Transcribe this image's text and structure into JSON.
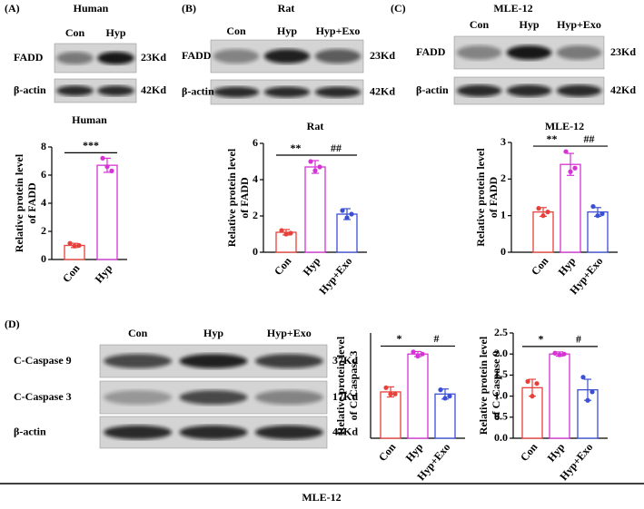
{
  "blots": [
    {
      "label": "(A)",
      "title": "Human",
      "lanes": [
        "Con",
        "Hyp"
      ],
      "rows": [
        {
          "protein": "FADD",
          "size": "23Kd"
        },
        {
          "protein": "β-actin",
          "size": "42Kd"
        }
      ]
    },
    {
      "label": "(B)",
      "title": "Rat",
      "lanes": [
        "Con",
        "Hyp",
        "Hyp+Exo"
      ],
      "rows": [
        {
          "protein": "FADD",
          "size": "23Kd"
        },
        {
          "protein": "β-actin",
          "size": "42Kd"
        }
      ]
    },
    {
      "label": "(C)",
      "title": "MLE-12",
      "lanes": [
        "Con",
        "Hyp",
        "Hyp+Exo"
      ],
      "rows": [
        {
          "protein": "FADD",
          "size": "23Kd"
        },
        {
          "protein": "β-actin",
          "size": "42Kd"
        }
      ]
    },
    {
      "label": "(D)",
      "lanes": [
        "Con",
        "Hyp",
        "Hyp+Exo"
      ],
      "rows": [
        {
          "protein": "C-Caspase 9",
          "size": "37Kd"
        },
        {
          "protein": "C-Caspase 3",
          "size": "17Kd"
        },
        {
          "protein": "β-actin",
          "size": "42Kd"
        }
      ]
    }
  ],
  "caption": "MLE-12",
  "chart_data": [
    {
      "type": "bar",
      "title": "Human",
      "ylabel": [
        "Relative protein level",
        "of FADD"
      ],
      "categories": [
        "Con",
        "Hyp"
      ],
      "values": [
        1.0,
        6.7
      ],
      "errors": [
        0.15,
        0.5
      ],
      "points": [
        [
          1.15,
          0.95,
          1.0
        ],
        [
          7.2,
          6.6,
          6.3
        ]
      ],
      "colors": [
        "#e8403a",
        "#d633d6"
      ],
      "significance": [
        "***"
      ],
      "ylim": [
        0,
        8
      ],
      "yticks": [
        0,
        2,
        4,
        6,
        8
      ]
    },
    {
      "type": "bar",
      "title": "Rat",
      "ylabel": [
        "Relative protein level",
        "of FADD"
      ],
      "categories": [
        "Con",
        "Hyp",
        "Hyp+Exo"
      ],
      "values": [
        1.1,
        4.7,
        2.1
      ],
      "errors": [
        0.15,
        0.35,
        0.3
      ],
      "points": [
        [
          1.2,
          1.0,
          1.05
        ],
        [
          5.0,
          4.5,
          4.7
        ],
        [
          2.3,
          1.9,
          2.1
        ]
      ],
      "colors": [
        "#e8403a",
        "#d633d6",
        "#3a4fd6"
      ],
      "significance": [
        "**",
        "##"
      ],
      "ylim": [
        0,
        6
      ],
      "yticks": [
        0,
        2,
        4,
        6
      ]
    },
    {
      "type": "bar",
      "title": "MLE-12",
      "ylabel": [
        "Relative protein level",
        "of FADD"
      ],
      "categories": [
        "Con",
        "Hyp",
        "Hyp+Exo"
      ],
      "values": [
        1.1,
        2.4,
        1.1
      ],
      "errors": [
        0.12,
        0.3,
        0.12
      ],
      "points": [
        [
          1.2,
          1.0,
          1.1
        ],
        [
          2.75,
          2.2,
          2.3
        ],
        [
          1.25,
          1.0,
          1.05
        ]
      ],
      "colors": [
        "#e8403a",
        "#d633d6",
        "#3a4fd6"
      ],
      "significance": [
        "**",
        "##"
      ],
      "ylim": [
        0,
        3
      ],
      "yticks": [
        0,
        1,
        2,
        3
      ]
    },
    {
      "type": "bar",
      "ylabel": [
        "Relative protein level",
        "of C-Caspase 3"
      ],
      "categories": [
        "Con",
        "Hyp",
        "Hyp+Exo"
      ],
      "values": [
        1.1,
        2.0,
        1.05
      ],
      "errors": [
        0.12,
        0.06,
        0.12
      ],
      "points": [
        [
          1.2,
          1.05,
          1.05
        ],
        [
          2.05,
          1.95,
          2.0
        ],
        [
          1.15,
          0.95,
          1.0
        ]
      ],
      "colors": [
        "#e8403a",
        "#d633d6",
        "#3a4fd6"
      ],
      "significance": [
        "*",
        "#"
      ],
      "ylim": [
        0,
        2.5
      ]
    },
    {
      "type": "bar",
      "ylabel": [
        "Relative protein level",
        "of C-Caspase 9"
      ],
      "categories": [
        "Con",
        "Hyp",
        "Hyp+Exo"
      ],
      "values": [
        1.2,
        2.0,
        1.15
      ],
      "errors": [
        0.2,
        0.05,
        0.25
      ],
      "points": [
        [
          1.35,
          1.0,
          1.3
        ],
        [
          2.02,
          1.98,
          2.0
        ],
        [
          1.45,
          0.9,
          1.1
        ]
      ],
      "colors": [
        "#e8403a",
        "#d633d6",
        "#3a4fd6"
      ],
      "significance": [
        "*",
        "#"
      ],
      "ylim": [
        0,
        2.5
      ],
      "yticks": [
        {
          "value": 0,
          "label": "0.0"
        },
        0.5,
        {
          "value": 1,
          "label": "1.0"
        },
        1.5,
        {
          "value": 2,
          "label": "2.0"
        },
        2.5
      ]
    }
  ]
}
